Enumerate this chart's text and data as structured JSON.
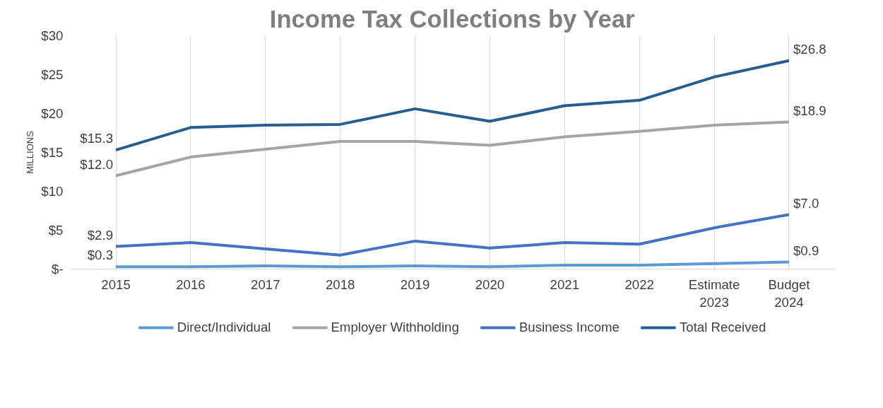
{
  "chart_data": {
    "type": "line",
    "title": "Income Tax Collections by Year",
    "ylabel": "MILLIONS",
    "categories": [
      "2015",
      "2016",
      "2017",
      "2018",
      "2019",
      "2020",
      "2021",
      "2022",
      "Estimate\n2023",
      "Budget\n2024"
    ],
    "ylim": [
      0,
      30
    ],
    "yticks": [
      {
        "value": 0,
        "label": "$-"
      },
      {
        "value": 5,
        "label": "$5"
      },
      {
        "value": 10,
        "label": "$10"
      },
      {
        "value": 15,
        "label": "$15"
      },
      {
        "value": 20,
        "label": "$20"
      },
      {
        "value": 25,
        "label": "$25"
      },
      {
        "value": 30,
        "label": "$30"
      }
    ],
    "grid": "x",
    "legend": "bottom",
    "marker": "none",
    "line_style": "solid",
    "series": [
      {
        "name": "Direct/Individual",
        "color": "#5b9bd5",
        "values": [
          0.3,
          0.3,
          0.4,
          0.3,
          0.4,
          0.3,
          0.5,
          0.5,
          0.7,
          0.9
        ],
        "value_labels": [
          "$0.3",
          null,
          null,
          null,
          null,
          null,
          null,
          null,
          null,
          "$0.9"
        ]
      },
      {
        "name": "Employer Withholding",
        "color": "#a5a5a5",
        "values": [
          12.0,
          14.4,
          15.4,
          16.4,
          16.4,
          15.9,
          17.0,
          17.7,
          18.5,
          18.9
        ],
        "value_labels": [
          "$12.0",
          null,
          null,
          null,
          null,
          null,
          null,
          null,
          null,
          "$18.9"
        ]
      },
      {
        "name": "Business Income",
        "color": "#4472c4",
        "values": [
          2.9,
          3.4,
          2.6,
          1.8,
          3.6,
          2.7,
          3.4,
          3.2,
          5.3,
          7.0
        ],
        "value_labels": [
          "$2.9",
          null,
          null,
          null,
          null,
          null,
          null,
          null,
          null,
          "$7.0"
        ]
      },
      {
        "name": "Total Received",
        "color": "#255e91",
        "values": [
          15.3,
          18.2,
          18.5,
          18.6,
          20.6,
          19.0,
          21.0,
          21.7,
          24.7,
          26.8
        ],
        "value_labels": [
          "$15.3",
          null,
          null,
          null,
          null,
          null,
          null,
          null,
          null,
          "$26.8"
        ]
      }
    ]
  }
}
